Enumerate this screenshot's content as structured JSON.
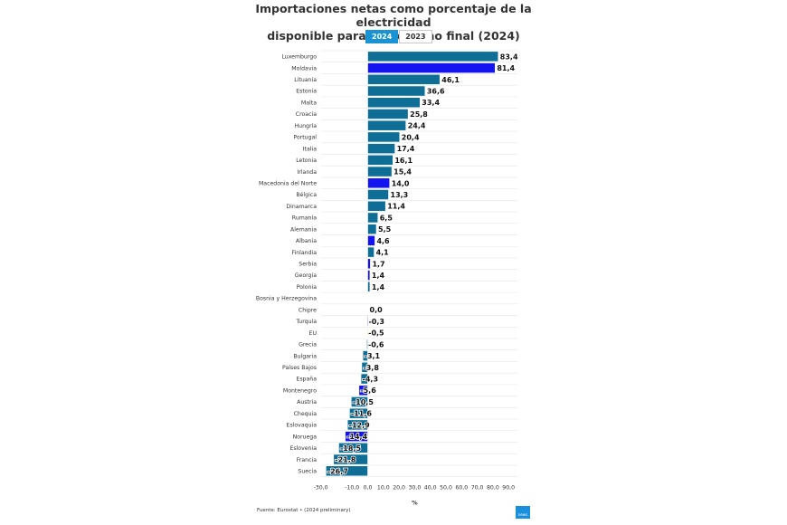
{
  "header": {
    "title_line1": "Importaciones netas como porcentaje de la electricidad",
    "title_line2": "disponible para el consumo final (2024)",
    "tabs": [
      {
        "label": "2024",
        "active": true
      },
      {
        "label": "2023",
        "active": false
      }
    ]
  },
  "footer": {
    "source": "Fuente: Eurostat • (2024 preliminary)",
    "logo_text": "news"
  },
  "colors": {
    "eu_bar": "#0e6e96",
    "non_eu_bar": "#1414f0",
    "eu_aggregate_bar": "#f2b84a",
    "bar_outline": "#ffffff",
    "grid": "#e6e6e6"
  },
  "chart_data": {
    "type": "bar",
    "orientation": "horizontal",
    "xlabel": "%",
    "xlim": [
      -30,
      90
    ],
    "xticks": [
      "-30,0",
      "-10,0",
      "0,0",
      "10,0",
      "20,0",
      "30,0",
      "40,0",
      "50,0",
      "60,0",
      "70,0",
      "80,0",
      "90,0"
    ],
    "categories": [
      "Luxemburgo",
      "Moldavia",
      "Lituania",
      "Estonia",
      "Malta",
      "Croacia",
      "Hungría",
      "Portugal",
      "Italia",
      "Letonia",
      "Irlanda",
      "Macedonia del Norte",
      "Bélgica",
      "Dinamarca",
      "Rumanía",
      "Alemania",
      "Albania",
      "Finlandia",
      "Serbia",
      "Georgia",
      "Polonia",
      "Bosnia y Herzegovina",
      "Chipre",
      "Turquía",
      "EU",
      "Grecia",
      "Bulgaria",
      "Países Bajos",
      "España",
      "Montenegro",
      "Austria",
      "Chequia",
      "Eslovaquia",
      "Noruega",
      "Eslovenia",
      "Francia",
      "Suecia"
    ],
    "values": [
      83.4,
      81.4,
      46.1,
      36.6,
      33.4,
      25.8,
      24.4,
      20.4,
      17.4,
      16.1,
      15.4,
      14.0,
      13.3,
      11.4,
      6.5,
      5.5,
      4.6,
      4.1,
      1.7,
      1.4,
      1.4,
      null,
      0.0,
      -0.3,
      -0.5,
      -0.6,
      -3.1,
      -3.8,
      -4.3,
      -5.6,
      -10.5,
      -11.6,
      -12.9,
      -14.4,
      -18.5,
      -21.8,
      -26.7
    ],
    "value_labels": [
      "83,4",
      "81,4",
      "46,1",
      "36,6",
      "33,4",
      "25,8",
      "24,4",
      "20,4",
      "17,4",
      "16,1",
      "15,4",
      "14,0",
      "13,3",
      "11,4",
      "6,5",
      "5,5",
      "4,6",
      "4,1",
      "1,7",
      "1,4",
      "1,4",
      "",
      "0,0",
      "-0,3",
      "-0,5",
      "-0,6",
      "-3,1",
      "-3,8",
      "-4,3",
      "-5,6",
      "-10,5",
      "-11,6",
      "-12,9",
      "-14,4",
      "-18,5",
      "-21,8",
      "-26,7"
    ],
    "groups": [
      "eu",
      "non_eu",
      "eu",
      "eu",
      "eu",
      "eu",
      "eu",
      "eu",
      "eu",
      "eu",
      "eu",
      "non_eu",
      "eu",
      "eu",
      "eu",
      "eu",
      "non_eu",
      "eu",
      "non_eu",
      "non_eu",
      "eu",
      "non_eu",
      "eu",
      "non_eu",
      "eu_aggregate",
      "eu",
      "eu",
      "eu",
      "eu",
      "non_eu",
      "eu",
      "eu",
      "eu",
      "non_eu",
      "eu",
      "eu",
      "eu"
    ],
    "grid": true,
    "legend": "none"
  }
}
